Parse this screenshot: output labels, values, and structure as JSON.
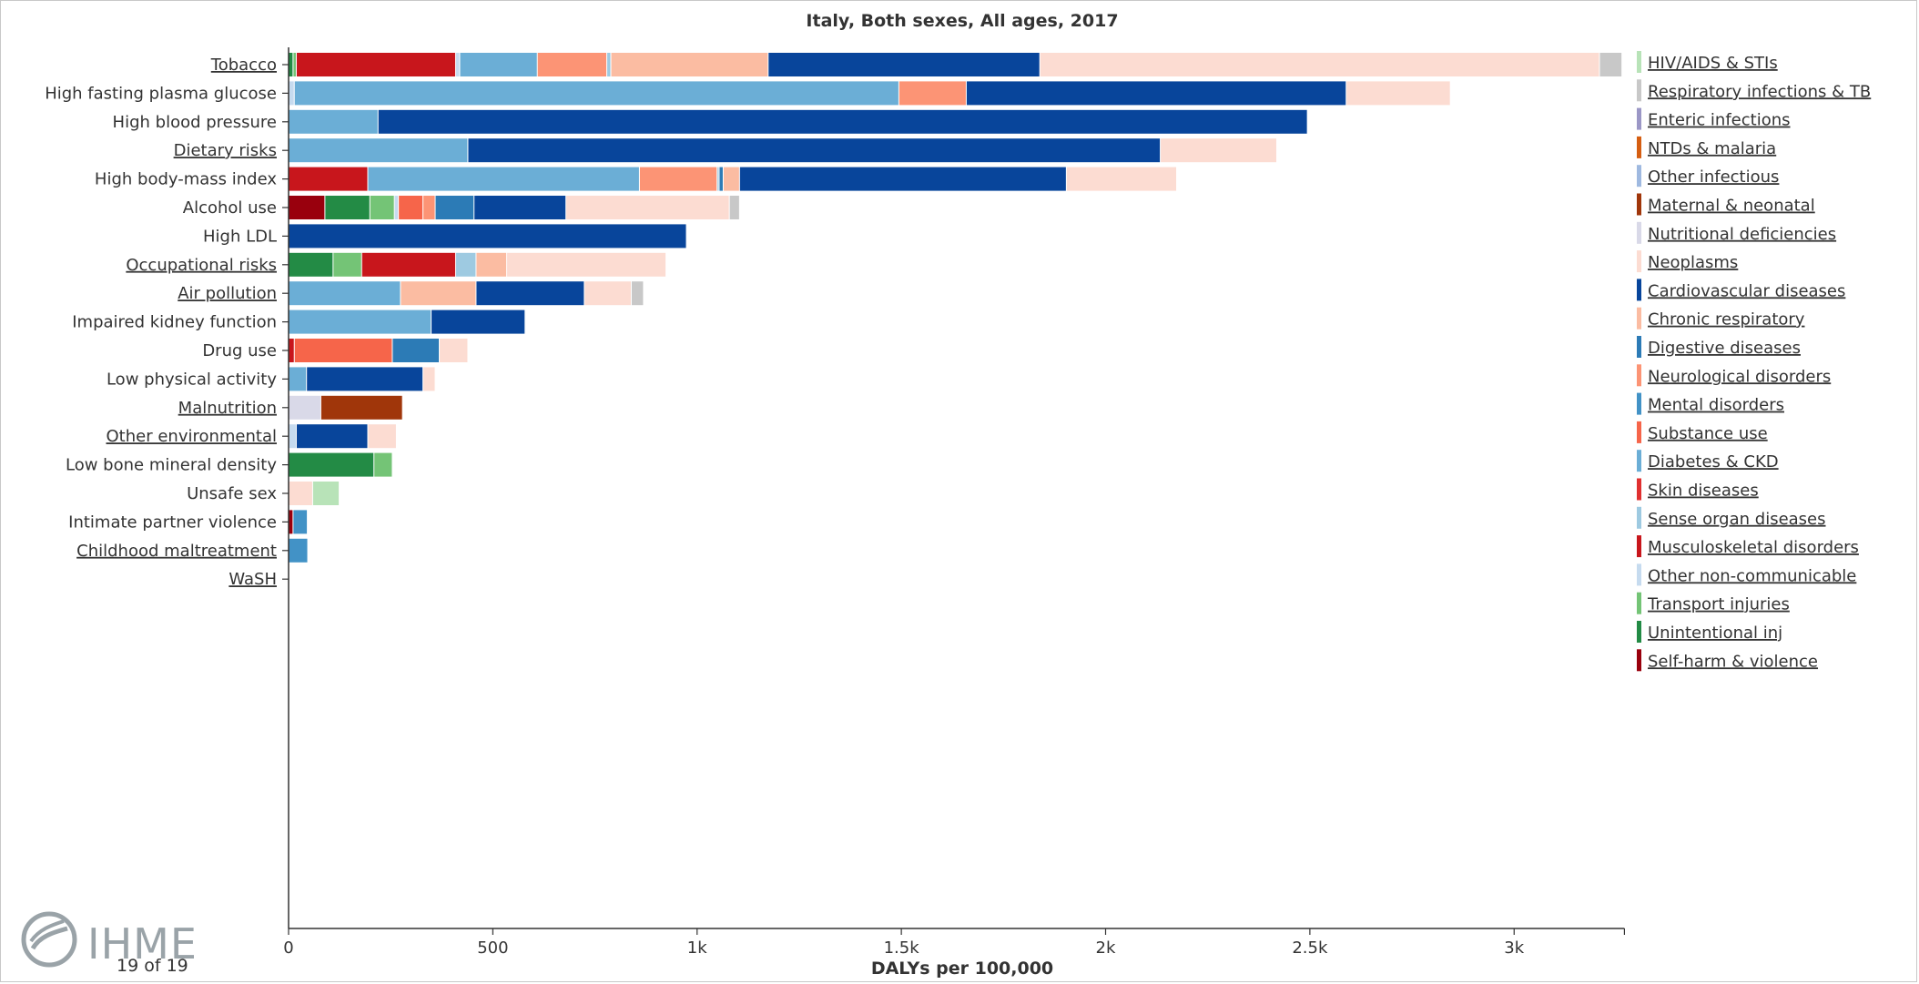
{
  "colors": {
    "hiv": "#b8e3b8",
    "resp_inf": "#c8c8c8",
    "enteric": "#9b97c6",
    "ntds": "#d55e12",
    "other_inf": "#9fb9e0",
    "maternal": "#a0360a",
    "nutritional": "#d9d9e8",
    "neoplasms": "#fcdcd2",
    "cardio": "#08459b",
    "chronic_resp": "#fbbca2",
    "digestive": "#2c7bb6",
    "neuro": "#fc9475",
    "mental": "#4292c6",
    "substance": "#f6654a",
    "diabetes": "#6baed6",
    "skin": "#e03030",
    "sense": "#9ecae1",
    "msk": "#c8161c",
    "other_ncd": "#c6dbef",
    "transport": "#74c476",
    "unintentional": "#238b45",
    "selfharm": "#99000d"
  },
  "chart_data": {
    "type": "bar",
    "orientation": "horizontal",
    "stacked": true,
    "title": "Italy, Both sexes, All ages, 2017",
    "xlabel": "DALYs per 100,000",
    "xlim": [
      0,
      3270
    ],
    "xticks": [
      0,
      500,
      1000,
      1500,
      2000,
      2500,
      3000
    ],
    "xtick_labels": [
      "0",
      "500",
      "1k",
      "1.5k",
      "2k",
      "2.5k",
      "3k"
    ],
    "legend_position": "right",
    "legend": [
      {
        "name": "HIV/AIDS & STIs",
        "color_key": "hiv"
      },
      {
        "name": "Respiratory infections & TB",
        "color_key": "resp_inf"
      },
      {
        "name": "Enteric infections",
        "color_key": "enteric"
      },
      {
        "name": "NTDs & malaria",
        "color_key": "ntds"
      },
      {
        "name": "Other infectious",
        "color_key": "other_inf"
      },
      {
        "name": "Maternal & neonatal",
        "color_key": "maternal"
      },
      {
        "name": "Nutritional deficiencies",
        "color_key": "nutritional"
      },
      {
        "name": "Neoplasms",
        "color_key": "neoplasms"
      },
      {
        "name": "Cardiovascular diseases",
        "color_key": "cardio"
      },
      {
        "name": "Chronic respiratory",
        "color_key": "chronic_resp"
      },
      {
        "name": "Digestive diseases",
        "color_key": "digestive"
      },
      {
        "name": "Neurological disorders",
        "color_key": "neuro"
      },
      {
        "name": "Mental disorders",
        "color_key": "mental"
      },
      {
        "name": "Substance use",
        "color_key": "substance"
      },
      {
        "name": "Diabetes & CKD",
        "color_key": "diabetes"
      },
      {
        "name": "Skin diseases",
        "color_key": "skin"
      },
      {
        "name": "Sense organ diseases",
        "color_key": "sense"
      },
      {
        "name": "Musculoskeletal disorders",
        "color_key": "msk"
      },
      {
        "name": "Other non-communicable",
        "color_key": "other_ncd"
      },
      {
        "name": "Transport injuries",
        "color_key": "transport"
      },
      {
        "name": "Unintentional inj",
        "color_key": "unintentional"
      },
      {
        "name": "Self-harm & violence",
        "color_key": "selfharm"
      }
    ],
    "rows": [
      {
        "label": "Tobacco",
        "link": true,
        "segments": [
          {
            "cause": "unintentional",
            "value": 12
          },
          {
            "cause": "transport",
            "value": 8
          },
          {
            "cause": "msk",
            "value": 390
          },
          {
            "cause": "other_ncd",
            "value": 10
          },
          {
            "cause": "diabetes",
            "value": 190
          },
          {
            "cause": "neuro",
            "value": 170
          },
          {
            "cause": "sense",
            "value": 10
          },
          {
            "cause": "chronic_resp",
            "value": 385
          },
          {
            "cause": "cardio",
            "value": 665
          },
          {
            "cause": "neoplasms",
            "value": 1370
          },
          {
            "cause": "resp_inf",
            "value": 55
          }
        ]
      },
      {
        "label": "High fasting plasma glucose",
        "link": false,
        "segments": [
          {
            "cause": "other_ncd",
            "value": 15
          },
          {
            "cause": "diabetes",
            "value": 1480
          },
          {
            "cause": "neuro",
            "value": 165
          },
          {
            "cause": "cardio",
            "value": 930
          },
          {
            "cause": "neoplasms",
            "value": 255
          }
        ]
      },
      {
        "label": "High blood pressure",
        "link": false,
        "segments": [
          {
            "cause": "diabetes",
            "value": 220
          },
          {
            "cause": "cardio",
            "value": 2275
          }
        ]
      },
      {
        "label": "Dietary risks",
        "link": true,
        "segments": [
          {
            "cause": "diabetes",
            "value": 440
          },
          {
            "cause": "cardio",
            "value": 1695
          },
          {
            "cause": "neoplasms",
            "value": 285
          }
        ]
      },
      {
        "label": "High body-mass index",
        "link": false,
        "segments": [
          {
            "cause": "msk",
            "value": 195
          },
          {
            "cause": "diabetes",
            "value": 665
          },
          {
            "cause": "neuro",
            "value": 190
          },
          {
            "cause": "sense",
            "value": 5
          },
          {
            "cause": "digestive",
            "value": 10
          },
          {
            "cause": "chronic_resp",
            "value": 40
          },
          {
            "cause": "cardio",
            "value": 800
          },
          {
            "cause": "neoplasms",
            "value": 270
          }
        ]
      },
      {
        "label": "Alcohol use",
        "link": false,
        "segments": [
          {
            "cause": "selfharm",
            "value": 90
          },
          {
            "cause": "unintentional",
            "value": 110
          },
          {
            "cause": "transport",
            "value": 60
          },
          {
            "cause": "other_ncd",
            "value": 10
          },
          {
            "cause": "substance",
            "value": 60
          },
          {
            "cause": "neuro",
            "value": 30
          },
          {
            "cause": "digestive",
            "value": 95
          },
          {
            "cause": "cardio",
            "value": 225
          },
          {
            "cause": "neoplasms",
            "value": 400
          },
          {
            "cause": "resp_inf",
            "value": 25
          }
        ]
      },
      {
        "label": "High LDL",
        "link": false,
        "segments": [
          {
            "cause": "cardio",
            "value": 975
          }
        ]
      },
      {
        "label": "Occupational risks",
        "link": true,
        "segments": [
          {
            "cause": "unintentional",
            "value": 110
          },
          {
            "cause": "transport",
            "value": 70
          },
          {
            "cause": "msk",
            "value": 230
          },
          {
            "cause": "sense",
            "value": 50
          },
          {
            "cause": "chronic_resp",
            "value": 75
          },
          {
            "cause": "neoplasms",
            "value": 390
          }
        ]
      },
      {
        "label": "Air pollution",
        "link": true,
        "segments": [
          {
            "cause": "diabetes",
            "value": 275
          },
          {
            "cause": "chronic_resp",
            "value": 185
          },
          {
            "cause": "cardio",
            "value": 265
          },
          {
            "cause": "neoplasms",
            "value": 115
          },
          {
            "cause": "resp_inf",
            "value": 30
          }
        ]
      },
      {
        "label": "Impaired kidney function",
        "link": false,
        "segments": [
          {
            "cause": "diabetes",
            "value": 350
          },
          {
            "cause": "cardio",
            "value": 230
          }
        ]
      },
      {
        "label": "Drug use",
        "link": false,
        "segments": [
          {
            "cause": "msk",
            "value": 15
          },
          {
            "cause": "substance",
            "value": 240
          },
          {
            "cause": "digestive",
            "value": 115
          },
          {
            "cause": "neoplasms",
            "value": 70
          }
        ]
      },
      {
        "label": "Low physical activity",
        "link": false,
        "segments": [
          {
            "cause": "diabetes",
            "value": 45
          },
          {
            "cause": "cardio",
            "value": 285
          },
          {
            "cause": "neoplasms",
            "value": 30
          }
        ]
      },
      {
        "label": "Malnutrition",
        "link": true,
        "segments": [
          {
            "cause": "nutritional",
            "value": 80
          },
          {
            "cause": "maternal",
            "value": 200
          }
        ]
      },
      {
        "label": "Other environmental",
        "link": true,
        "segments": [
          {
            "cause": "other_ncd",
            "value": 20
          },
          {
            "cause": "cardio",
            "value": 175
          },
          {
            "cause": "neoplasms",
            "value": 70
          }
        ]
      },
      {
        "label": "Low bone mineral density",
        "link": false,
        "segments": [
          {
            "cause": "unintentional",
            "value": 210
          },
          {
            "cause": "transport",
            "value": 45
          }
        ]
      },
      {
        "label": "Unsafe sex",
        "link": false,
        "segments": [
          {
            "cause": "neoplasms",
            "value": 60
          },
          {
            "cause": "hiv",
            "value": 65
          }
        ]
      },
      {
        "label": "Intimate partner violence",
        "link": false,
        "segments": [
          {
            "cause": "selfharm",
            "value": 12
          },
          {
            "cause": "mental",
            "value": 35
          }
        ]
      },
      {
        "label": "Childhood maltreatment",
        "link": true,
        "segments": [
          {
            "cause": "mental",
            "value": 48
          }
        ]
      },
      {
        "label": "WaSH",
        "link": true,
        "segments": []
      }
    ]
  },
  "footer": {
    "logo_text": "IHME",
    "page_counter": "19 of 19"
  }
}
